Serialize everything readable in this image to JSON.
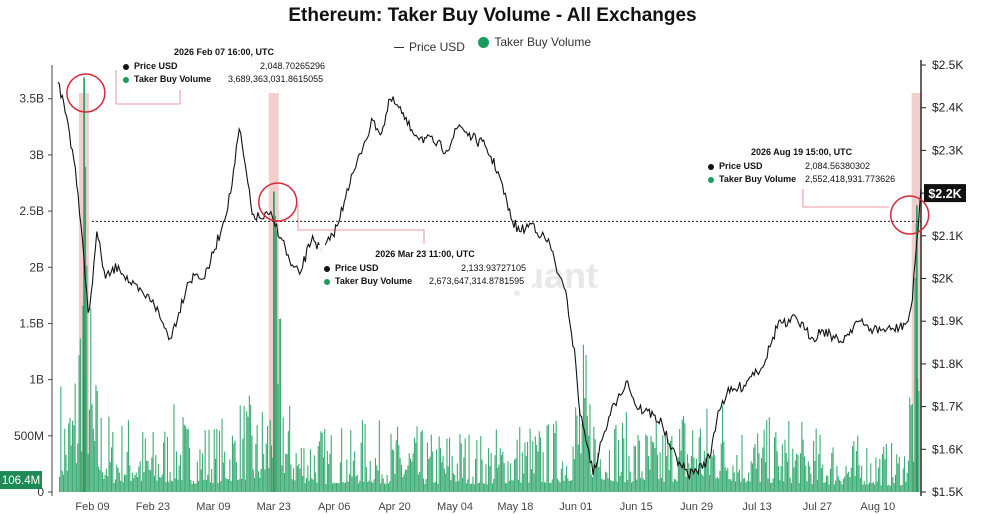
{
  "title": "Ethereum: Taker Buy Volume - All Exchanges",
  "legend": {
    "price_label": "Price USD",
    "volume_label": "Taker Buy Volume"
  },
  "colors": {
    "price": "#111111",
    "volume": "#1a9d5c",
    "highlight": "#e8a5a5",
    "circle": "#d42b3a"
  },
  "watermark": "quant",
  "chart_data": {
    "type": "line",
    "x_ticks": [
      "Feb 09",
      "Feb 23",
      "Mar 09",
      "Mar 23",
      "Apr 06",
      "Apr 20",
      "May 04",
      "May 18",
      "Jun 01",
      "Jun 15",
      "Jun 29",
      "Jul 13",
      "Jul 27",
      "Aug 10"
    ],
    "left_axis": {
      "ticks": [
        "0",
        "500M",
        "1B",
        "1.5B",
        "2B",
        "2.5B",
        "3B",
        "3.5B"
      ],
      "range": [
        0,
        3800000000
      ],
      "current_label": "106.4M"
    },
    "right_axis": {
      "ticks": [
        "$1.5K",
        "$1.6K",
        "$1.7K",
        "$1.8K",
        "$1.9K",
        "$2K",
        "$2.1K",
        "$2.2K",
        "$2.3K",
        "$2.4K",
        "$2.5K"
      ],
      "range": [
        1500,
        2500
      ],
      "current_label": "$2.2K"
    },
    "reference_price": 2133.9,
    "series": [
      {
        "name": "Price USD",
        "axis": "right",
        "points": [
          [
            "Feb 01",
            2460
          ],
          [
            "Feb 03",
            2380
          ],
          [
            "Feb 05",
            2260
          ],
          [
            "Feb 06",
            2150
          ],
          [
            "Feb 07",
            2049
          ],
          [
            "Feb 08",
            1920
          ],
          [
            "Feb 09",
            1990
          ],
          [
            "Feb 10",
            2110
          ],
          [
            "Feb 12",
            2000
          ],
          [
            "Feb 15",
            2030
          ],
          [
            "Feb 18",
            1985
          ],
          [
            "Feb 21",
            1960
          ],
          [
            "Feb 23",
            1950
          ],
          [
            "Feb 25",
            1900
          ],
          [
            "Feb 27",
            1860
          ],
          [
            "Mar 01",
            1920
          ],
          [
            "Mar 03",
            1990
          ],
          [
            "Mar 05",
            2010
          ],
          [
            "Mar 07",
            2000
          ],
          [
            "Mar 09",
            2060
          ],
          [
            "Mar 11",
            2120
          ],
          [
            "Mar 13",
            2200
          ],
          [
            "Mar 15",
            2350
          ],
          [
            "Mar 16",
            2290
          ],
          [
            "Mar 18",
            2150
          ],
          [
            "Mar 20",
            2140
          ],
          [
            "Mar 22",
            2150
          ],
          [
            "Mar 23",
            2134
          ],
          [
            "Mar 25",
            2090
          ],
          [
            "Mar 27",
            2030
          ],
          [
            "Mar 29",
            2010
          ],
          [
            "Apr 01",
            2100
          ],
          [
            "Apr 03",
            2060
          ],
          [
            "Apr 05",
            2090
          ],
          [
            "Apr 07",
            2130
          ],
          [
            "Apr 09",
            2210
          ],
          [
            "Apr 11",
            2260
          ],
          [
            "Apr 13",
            2320
          ],
          [
            "Apr 15",
            2370
          ],
          [
            "Apr 17",
            2340
          ],
          [
            "Apr 19",
            2420
          ],
          [
            "Apr 21",
            2400
          ],
          [
            "Apr 23",
            2360
          ],
          [
            "Apr 26",
            2330
          ],
          [
            "Apr 29",
            2320
          ],
          [
            "May 02",
            2300
          ],
          [
            "May 05",
            2360
          ],
          [
            "May 08",
            2330
          ],
          [
            "May 11",
            2310
          ],
          [
            "May 14",
            2250
          ],
          [
            "May 17",
            2140
          ],
          [
            "May 19",
            2110
          ],
          [
            "May 22",
            2130
          ],
          [
            "May 24",
            2100
          ],
          [
            "May 26",
            2080
          ],
          [
            "May 28",
            2010
          ],
          [
            "May 30",
            1950
          ],
          [
            "Jun 01",
            1800
          ],
          [
            "Jun 02",
            1680
          ],
          [
            "Jun 04",
            1600
          ],
          [
            "Jun 05",
            1540
          ],
          [
            "Jun 07",
            1620
          ],
          [
            "Jun 09",
            1680
          ],
          [
            "Jun 11",
            1730
          ],
          [
            "Jun 13",
            1760
          ],
          [
            "Jun 15",
            1700
          ],
          [
            "Jun 17",
            1690
          ],
          [
            "Jun 19",
            1680
          ],
          [
            "Jun 21",
            1660
          ],
          [
            "Jun 23",
            1600
          ],
          [
            "Jun 25",
            1570
          ],
          [
            "Jun 27",
            1540
          ],
          [
            "Jun 29",
            1550
          ],
          [
            "Jul 02",
            1580
          ],
          [
            "Jul 04",
            1690
          ],
          [
            "Jul 06",
            1730
          ],
          [
            "Jul 08",
            1740
          ],
          [
            "Jul 10",
            1750
          ],
          [
            "Jul 12",
            1780
          ],
          [
            "Jul 14",
            1790
          ],
          [
            "Jul 16",
            1840
          ],
          [
            "Jul 18",
            1900
          ],
          [
            "Jul 20",
            1890
          ],
          [
            "Jul 22",
            1910
          ],
          [
            "Jul 24",
            1880
          ],
          [
            "Jul 26",
            1860
          ],
          [
            "Jul 28",
            1880
          ],
          [
            "Jul 30",
            1870
          ],
          [
            "Aug 01",
            1850
          ],
          [
            "Aug 03",
            1870
          ],
          [
            "Aug 05",
            1900
          ],
          [
            "Aug 07",
            1890
          ],
          [
            "Aug 09",
            1880
          ],
          [
            "Aug 11",
            1880
          ],
          [
            "Aug 13",
            1880
          ],
          [
            "Aug 15",
            1885
          ],
          [
            "Aug 17",
            1900
          ],
          [
            "Aug 18",
            1950
          ],
          [
            "Aug 19",
            2084
          ],
          [
            "Aug 20",
            2210
          ]
        ]
      },
      {
        "name": "Taker Buy Volume",
        "axis": "left",
        "sampling": "hourly",
        "points": [
          [
            "Feb 01",
            1150000000
          ],
          [
            "Feb 03",
            950000000
          ],
          [
            "Feb 05",
            1450000000
          ],
          [
            "Feb 07",
            3689363032
          ],
          [
            "Feb 09",
            1250000000
          ],
          [
            "Feb 11",
            900000000
          ],
          [
            "Feb 14",
            650000000
          ],
          [
            "Feb 17",
            750000000
          ],
          [
            "Feb 20",
            650000000
          ],
          [
            "Feb 23",
            600000000
          ],
          [
            "Feb 26",
            700000000
          ],
          [
            "Mar 01",
            850000000
          ],
          [
            "Mar 04",
            600000000
          ],
          [
            "Mar 07",
            700000000
          ],
          [
            "Mar 10",
            650000000
          ],
          [
            "Mar 13",
            800000000
          ],
          [
            "Mar 16",
            950000000
          ],
          [
            "Mar 19",
            750000000
          ],
          [
            "Mar 22",
            1100000000
          ],
          [
            "Mar 23",
            2673647314
          ],
          [
            "Mar 26",
            900000000
          ],
          [
            "Mar 29",
            650000000
          ],
          [
            "Apr 01",
            700000000
          ],
          [
            "Apr 04",
            600000000
          ],
          [
            "Apr 07",
            650000000
          ],
          [
            "Apr 10",
            550000000
          ],
          [
            "Apr 13",
            700000000
          ],
          [
            "Apr 16",
            650000000
          ],
          [
            "Apr 19",
            600000000
          ],
          [
            "Apr 22",
            650000000
          ],
          [
            "Apr 25",
            600000000
          ],
          [
            "Apr 28",
            550000000
          ],
          [
            "May 01",
            600000000
          ],
          [
            "May 04",
            650000000
          ],
          [
            "May 07",
            600000000
          ],
          [
            "May 10",
            550000000
          ],
          [
            "May 13",
            600000000
          ],
          [
            "May 16",
            650000000
          ],
          [
            "May 19",
            700000000
          ],
          [
            "May 22",
            650000000
          ],
          [
            "May 25",
            650000000
          ],
          [
            "May 28",
            700000000
          ],
          [
            "May 31",
            850000000
          ],
          [
            "Jun 02",
            1500000000
          ],
          [
            "Jun 05",
            1050000000
          ],
          [
            "Jun 08",
            850000000
          ],
          [
            "Jun 11",
            750000000
          ],
          [
            "Jun 14",
            700000000
          ],
          [
            "Jun 17",
            650000000
          ],
          [
            "Jun 20",
            650000000
          ],
          [
            "Jun 23",
            700000000
          ],
          [
            "Jun 26",
            900000000
          ],
          [
            "Jun 29",
            950000000
          ],
          [
            "Jul 02",
            800000000
          ],
          [
            "Jul 05",
            1000000000
          ],
          [
            "Jul 08",
            750000000
          ],
          [
            "Jul 11",
            650000000
          ],
          [
            "Jul 14",
            700000000
          ],
          [
            "Jul 17",
            650000000
          ],
          [
            "Jul 20",
            700000000
          ],
          [
            "Jul 23",
            650000000
          ],
          [
            "Jul 26",
            600000000
          ],
          [
            "Jul 29",
            550000000
          ],
          [
            "Aug 01",
            550000000
          ],
          [
            "Aug 04",
            500000000
          ],
          [
            "Aug 07",
            550000000
          ],
          [
            "Aug 10",
            500000000
          ],
          [
            "Aug 13",
            450000000
          ],
          [
            "Aug 16",
            500000000
          ],
          [
            "Aug 19",
            2552418932
          ],
          [
            "Aug 20",
            106400000
          ]
        ]
      }
    ],
    "highlights": [
      "Feb 07",
      "Mar 23",
      "Aug 19"
    ],
    "annotations": [
      {
        "time": "2026 Feb 07 16:00, UTC",
        "price_label": "Price USD",
        "price_value": "2,048.70265296",
        "volume_label": "Taker Buy Volume",
        "volume_value": "3,689,363,031.8615055"
      },
      {
        "time": "2026 Mar 23 11:00, UTC",
        "price_label": "Price USD",
        "price_value": "2,133.93727105",
        "volume_label": "Taker Buy Volume",
        "volume_value": "2,673,647,314.8781595"
      },
      {
        "time": "2026 Aug 19 15:00, UTC",
        "price_label": "Price USD",
        "price_value": "2,084.56380302",
        "volume_label": "Taker Buy Volume",
        "volume_value": "2,552,418,931.773626"
      }
    ]
  }
}
